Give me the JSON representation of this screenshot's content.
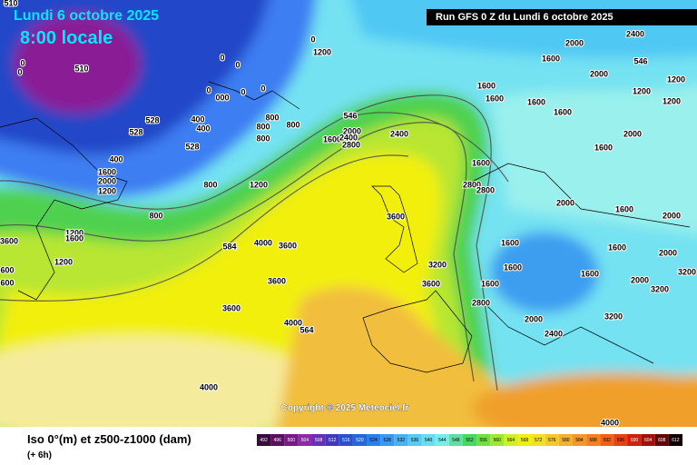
{
  "header": {
    "date": "Lundi 6 octobre 2025",
    "time": "8:00 locale"
  },
  "run": "Run GFS 0 Z du Lundi 6 octobre 2025",
  "copyright": "Copyright © 2025 Meteociel.fr",
  "footer": {
    "title": "Iso 0°(m) et z500-z1000 (dam)",
    "step": "(+ 6h)"
  },
  "legend": {
    "values": [
      492,
      496,
      500,
      504,
      508,
      512,
      516,
      520,
      524,
      528,
      532,
      536,
      540,
      544,
      548,
      552,
      556,
      560,
      564,
      568,
      572,
      576,
      580,
      584,
      588,
      592,
      596,
      600,
      604,
      608,
      612
    ]
  },
  "contour_labels": [
    "510",
    "510",
    "0",
    "0",
    "0",
    "0",
    "0",
    "0",
    "000",
    "0",
    "0",
    "1200",
    "546",
    "546",
    "1600",
    "2000",
    "2400",
    "2000",
    "1200",
    "1200",
    "1200",
    "1600",
    "1600",
    "1600",
    "1600",
    "2000",
    "1600",
    "800",
    "800",
    "800",
    "800",
    "400",
    "400",
    "528",
    "528",
    "528",
    "400",
    "1600",
    "2000",
    "1200",
    "800",
    "1200",
    "800",
    "1600",
    "2000",
    "2400",
    "2800",
    "2400",
    "1600",
    "2800",
    "2800",
    "2000",
    "1600",
    "2000",
    "3600",
    "4000",
    "3600",
    "584",
    "1600",
    "1600",
    "2000",
    "3600",
    "1200",
    "1600",
    "1200",
    "3200",
    "1600",
    "1600",
    "2000",
    "3200",
    "3600",
    "3600",
    "1600",
    "3200",
    "600",
    "600",
    "2800",
    "3600",
    "3200",
    "2000",
    "4000",
    "564",
    "2400",
    "4000",
    "4000"
  ]
}
